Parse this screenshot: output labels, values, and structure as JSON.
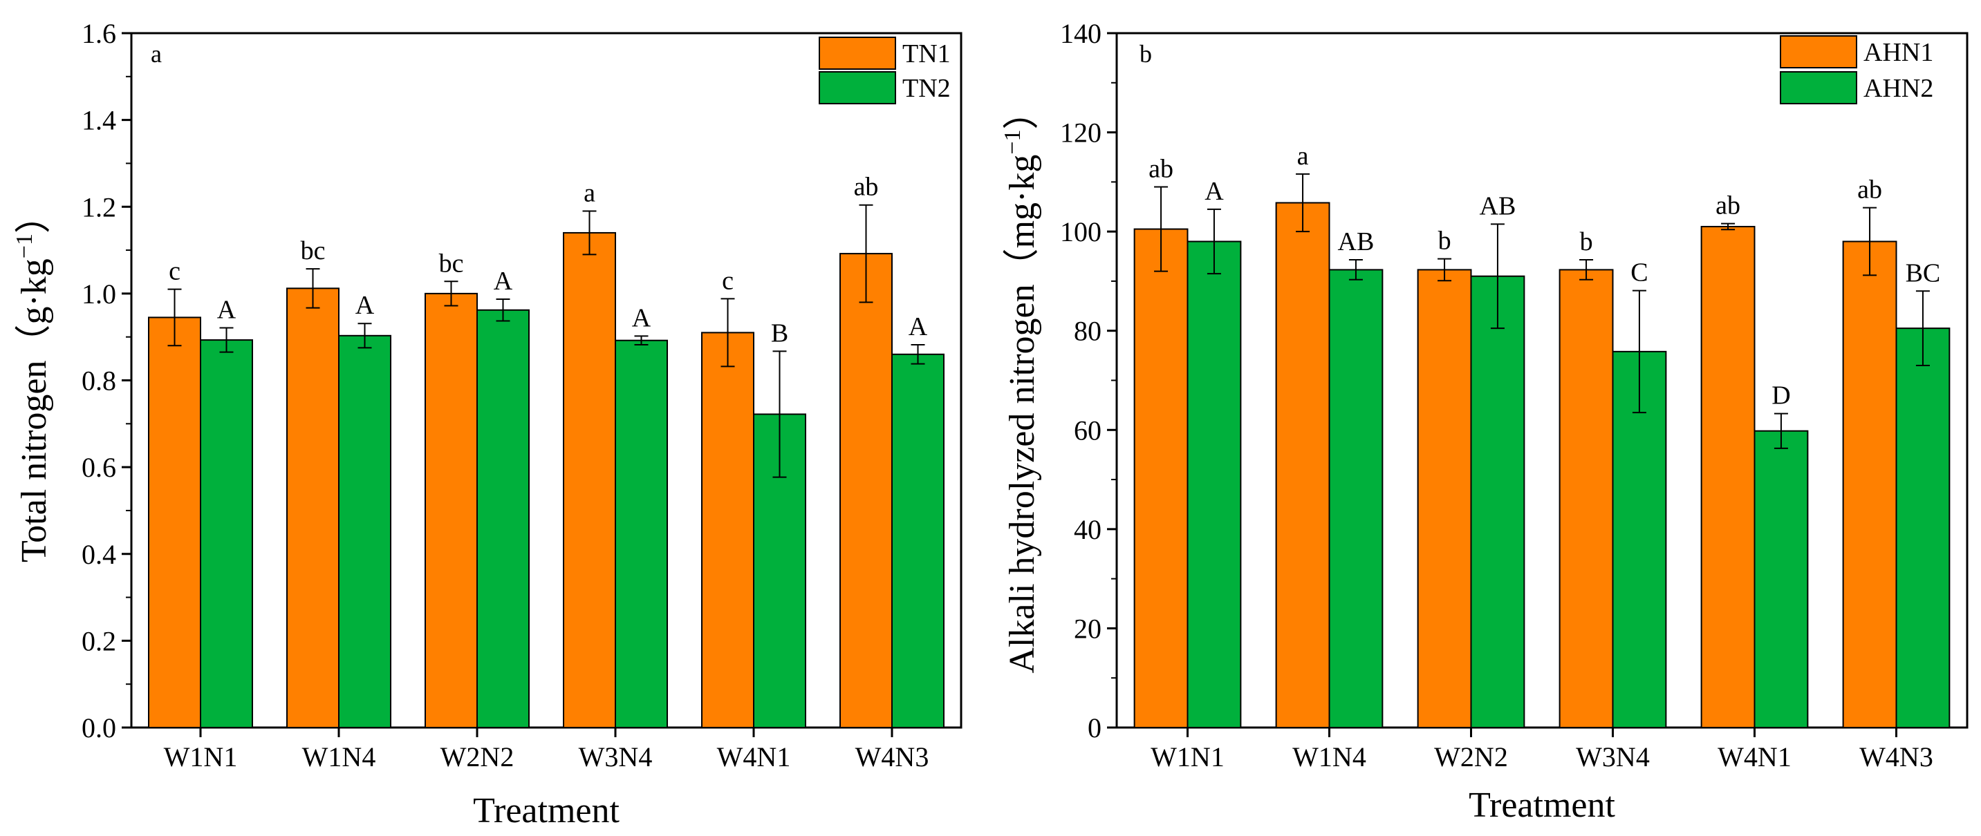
{
  "colors": {
    "series1": "#ff8000",
    "series2": "#00b03c",
    "stroke": "#000000"
  },
  "chart_data": [
    {
      "type": "bar",
      "panel_label": "a",
      "xlabel": "Treatment",
      "ylabel_main": "Total nitrogen",
      "ylabel_unit_pre": "（g·kg",
      "ylabel_unit_sup": "−1",
      "ylabel_unit_post": "）",
      "ylim": [
        0,
        1.6
      ],
      "yticks": [
        0.0,
        0.2,
        0.4,
        0.6,
        0.8,
        1.0,
        1.2,
        1.4,
        1.6
      ],
      "ytick_labels": [
        "0.0",
        "0.2",
        "0.4",
        "0.6",
        "0.8",
        "1.0",
        "1.2",
        "1.4",
        "1.6"
      ],
      "categories": [
        "W1N1",
        "W1N4",
        "W2N2",
        "W3N4",
        "W4N1",
        "W4N3"
      ],
      "legend_position": "top-right",
      "series": [
        {
          "name": "TN1",
          "values": [
            0.945,
            1.012,
            1.0,
            1.14,
            0.91,
            1.092
          ],
          "errors": [
            0.065,
            0.045,
            0.028,
            0.05,
            0.078,
            0.112
          ],
          "letters": [
            "c",
            "bc",
            "bc",
            "a",
            "c",
            "ab"
          ]
        },
        {
          "name": "TN2",
          "values": [
            0.893,
            0.903,
            0.962,
            0.892,
            0.722,
            0.86
          ],
          "errors": [
            0.028,
            0.028,
            0.025,
            0.01,
            0.145,
            0.022
          ],
          "letters": [
            "A",
            "A",
            "A",
            "A",
            "B",
            "A"
          ]
        }
      ]
    },
    {
      "type": "bar",
      "panel_label": "b",
      "xlabel": "Treatment",
      "ylabel_main": "Alkali hydrolyzed nitrogen",
      "ylabel_unit_pre": "（mg·kg",
      "ylabel_unit_sup": "−1",
      "ylabel_unit_post": "）",
      "ylim": [
        0,
        140
      ],
      "yticks": [
        0,
        20,
        40,
        60,
        80,
        100,
        120,
        140
      ],
      "ytick_labels": [
        "0",
        "20",
        "40",
        "60",
        "80",
        "100",
        "120",
        "140"
      ],
      "categories": [
        "W1N1",
        "W1N4",
        "W2N2",
        "W3N4",
        "W4N1",
        "W4N3"
      ],
      "legend_position": "top-right",
      "series": [
        {
          "name": "AHN1",
          "values": [
            100.5,
            105.8,
            92.3,
            92.3,
            101.0,
            98.0
          ],
          "errors": [
            8.5,
            5.8,
            2.2,
            2.0,
            0.6,
            6.8
          ],
          "letters": [
            "ab",
            "a",
            "b",
            "b",
            "ab",
            "ab"
          ]
        },
        {
          "name": "AHN2",
          "values": [
            98.0,
            92.3,
            91.0,
            75.8,
            59.8,
            80.5
          ],
          "errors": [
            6.5,
            2.0,
            10.5,
            12.3,
            3.5,
            7.5
          ],
          "letters": [
            "A",
            "AB",
            "AB",
            "C",
            "D",
            "BC"
          ]
        }
      ]
    }
  ]
}
